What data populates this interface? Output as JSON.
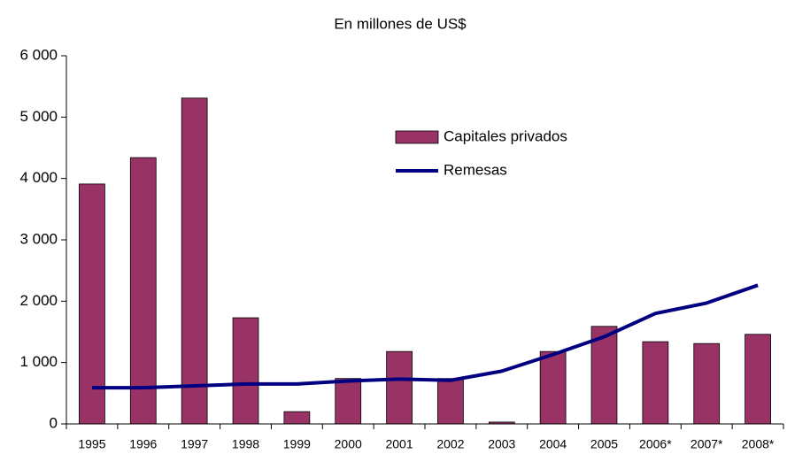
{
  "chart_data": {
    "type": "bar_line",
    "title": "En millones de US$",
    "categories": [
      "1995",
      "1996",
      "1997",
      "1998",
      "1999",
      "2000",
      "2001",
      "2002",
      "2003",
      "2004",
      "2005",
      "2006*",
      "2007*",
      "2008*"
    ],
    "series": [
      {
        "name": "Capitales privados",
        "type": "bar",
        "color": "#993366",
        "values": [
          3910,
          4340,
          5310,
          1730,
          200,
          740,
          1180,
          740,
          30,
          1180,
          1590,
          1340,
          1310,
          1460
        ]
      },
      {
        "name": "Remesas",
        "type": "line",
        "color": "#000080",
        "values": [
          590,
          590,
          620,
          650,
          650,
          700,
          730,
          710,
          860,
          1130,
          1420,
          1800,
          1970,
          2260
        ]
      }
    ],
    "ylim": [
      0,
      6000
    ],
    "yticks": [
      {
        "value": 0,
        "label": "0"
      },
      {
        "value": 1000,
        "label": "1 000"
      },
      {
        "value": 2000,
        "label": "2 000"
      },
      {
        "value": 3000,
        "label": "3 000"
      },
      {
        "value": 4000,
        "label": "4 000"
      },
      {
        "value": 5000,
        "label": "5 000"
      },
      {
        "value": 6000,
        "label": "6 000"
      }
    ],
    "grid": false
  }
}
